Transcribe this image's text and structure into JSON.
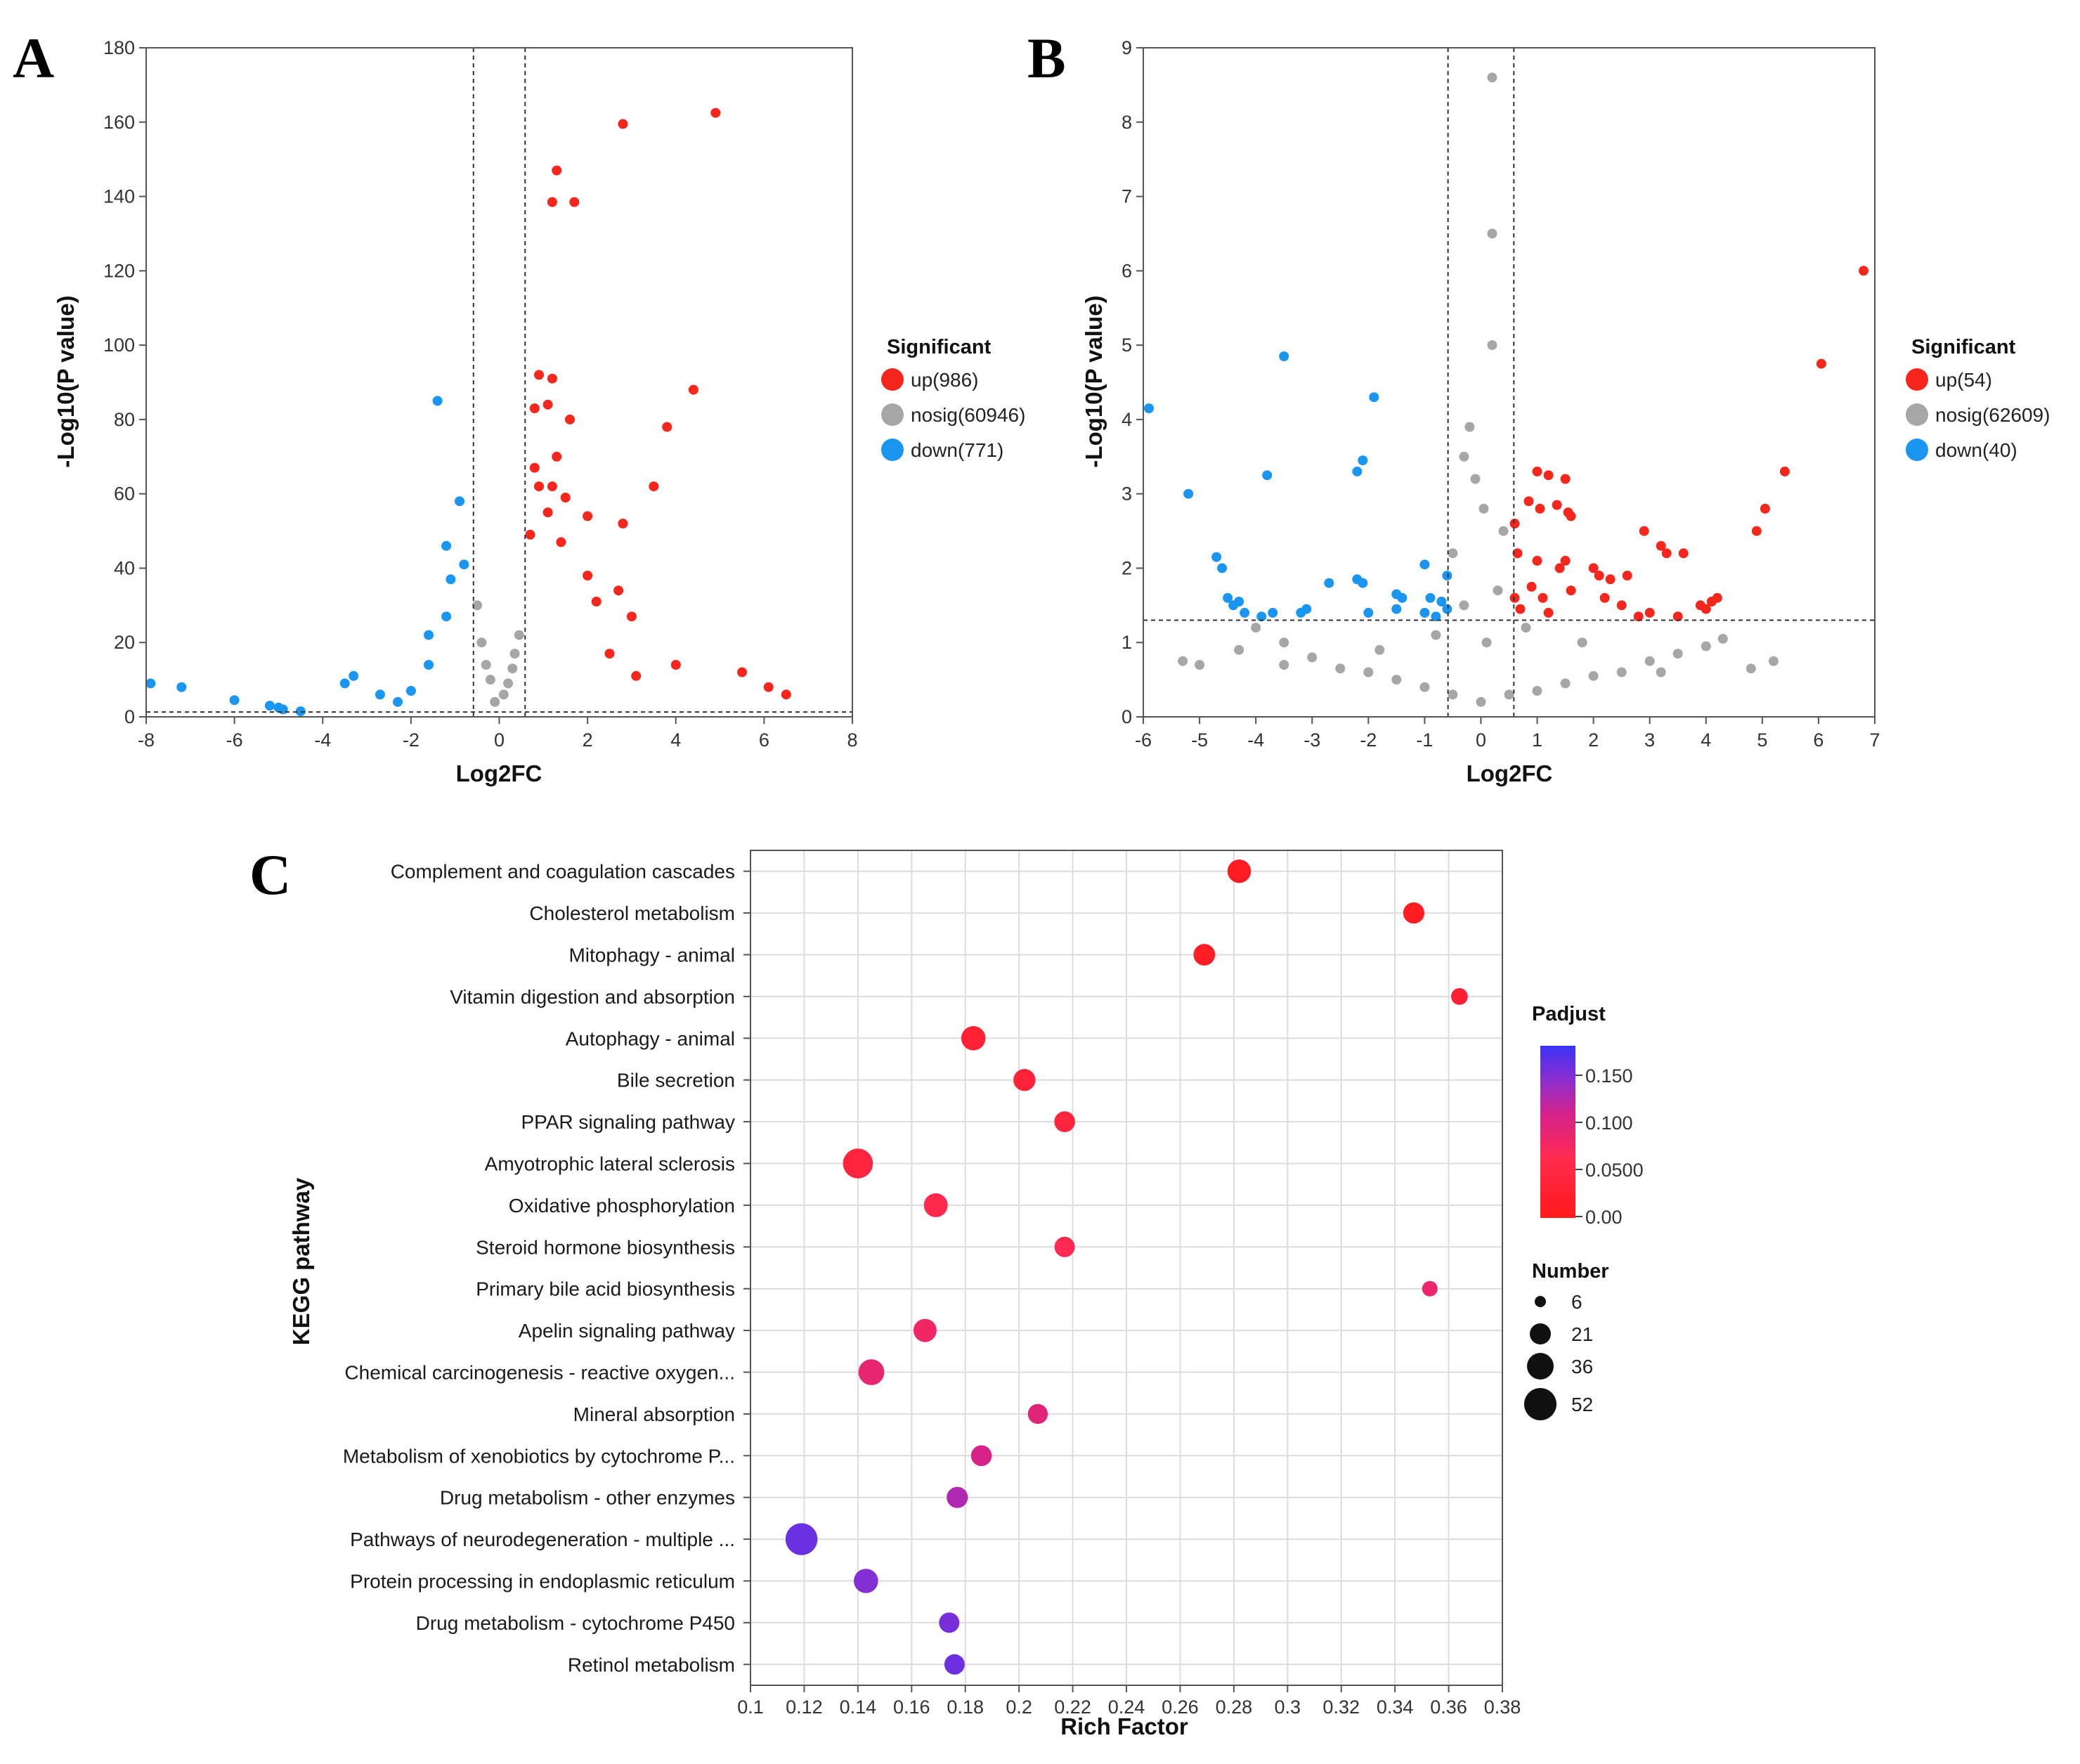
{
  "panels": {
    "a": "A",
    "b": "B",
    "c": "C"
  },
  "colors": {
    "up": "#f5261c",
    "nosig": "#a6a6a6",
    "down": "#1a96f0",
    "grid": "#dcdcdc"
  },
  "chart_data": [
    {
      "id": "A",
      "type": "scatter",
      "subtype": "volcano",
      "xlabel": "Log2FC",
      "ylabel": "-Log10(P value)",
      "xlim": [
        -8,
        8
      ],
      "ylim": [
        0,
        180
      ],
      "x_ticks": [
        "-8",
        "-6",
        "-4",
        "-2",
        "0",
        "2",
        "4",
        "6",
        "8"
      ],
      "y_ticks": [
        "0",
        "20",
        "40",
        "60",
        "80",
        "100",
        "120",
        "140",
        "160",
        "180"
      ],
      "thresholds": {
        "x": [
          -0.585,
          0.585
        ],
        "y": 1.3
      },
      "legend": {
        "title": "Significant",
        "items": [
          {
            "key": "up",
            "label": "up(986)"
          },
          {
            "key": "nosig",
            "label": "nosig(60946)"
          },
          {
            "key": "down",
            "label": "down(771)"
          }
        ]
      },
      "series": [
        {
          "name": "up",
          "points": [
            [
              4.9,
              162.5
            ],
            [
              2.8,
              159.5
            ],
            [
              1.3,
              147
            ],
            [
              1.2,
              138.5
            ],
            [
              1.7,
              138.5
            ],
            [
              4.4,
              88
            ],
            [
              0.9,
              92
            ],
            [
              1.2,
              91
            ],
            [
              0.8,
              83
            ],
            [
              1.1,
              84
            ],
            [
              1.6,
              80
            ],
            [
              3.8,
              78
            ],
            [
              1.3,
              70
            ],
            [
              0.8,
              67
            ],
            [
              1.2,
              62
            ],
            [
              1.5,
              59
            ],
            [
              3.5,
              62
            ],
            [
              0.9,
              62
            ],
            [
              1.1,
              55
            ],
            [
              2.0,
              54
            ],
            [
              2.8,
              52
            ],
            [
              0.7,
              49
            ],
            [
              1.4,
              47
            ],
            [
              4.0,
              14
            ],
            [
              2.5,
              17
            ],
            [
              5.5,
              12
            ],
            [
              3.1,
              11
            ],
            [
              6.1,
              8
            ],
            [
              6.5,
              6
            ],
            [
              2.0,
              38
            ],
            [
              2.7,
              34
            ],
            [
              2.2,
              31
            ],
            [
              3.0,
              27
            ]
          ]
        },
        {
          "name": "nosig",
          "points": [
            [
              -0.4,
              20
            ],
            [
              -0.3,
              14
            ],
            [
              -0.2,
              10
            ],
            [
              0.2,
              9
            ],
            [
              0.3,
              13
            ],
            [
              0.45,
              22
            ],
            [
              -0.5,
              30
            ],
            [
              0.1,
              6
            ],
            [
              -0.1,
              4
            ],
            [
              0.35,
              17
            ]
          ]
        },
        {
          "name": "down",
          "points": [
            [
              -1.4,
              85
            ],
            [
              -0.9,
              58
            ],
            [
              -1.2,
              46
            ],
            [
              -0.8,
              41
            ],
            [
              -1.1,
              37
            ],
            [
              -7.9,
              9
            ],
            [
              -7.2,
              8
            ],
            [
              -6.0,
              4.5
            ],
            [
              -5.2,
              3
            ],
            [
              -3.3,
              11
            ],
            [
              -3.5,
              9
            ],
            [
              -2.7,
              6
            ],
            [
              -2.3,
              4
            ],
            [
              -4.5,
              1.5
            ],
            [
              -4.9,
              2
            ],
            [
              -5.0,
              2.5
            ],
            [
              -2.0,
              7
            ],
            [
              -1.6,
              14
            ],
            [
              -1.6,
              22
            ],
            [
              -1.2,
              27
            ]
          ]
        }
      ]
    },
    {
      "id": "B",
      "type": "scatter",
      "subtype": "volcano",
      "xlabel": "Log2FC",
      "ylabel": "-Log10(P value)",
      "xlim": [
        -6,
        7
      ],
      "ylim": [
        0,
        9
      ],
      "x_ticks": [
        "-6",
        "-5",
        "-4",
        "-3",
        "-2",
        "-1",
        "0",
        "1",
        "2",
        "3",
        "4",
        "5",
        "6",
        "7"
      ],
      "y_ticks": [
        "0",
        "1",
        "2",
        "3",
        "4",
        "5",
        "6",
        "7",
        "8",
        "9"
      ],
      "thresholds": {
        "x": [
          -0.585,
          0.585
        ],
        "y": 1.3
      },
      "legend": {
        "title": "Significant",
        "items": [
          {
            "key": "up",
            "label": "up(54)"
          },
          {
            "key": "nosig",
            "label": "nosig(62609)"
          },
          {
            "key": "down",
            "label": "down(40)"
          }
        ]
      },
      "series": [
        {
          "name": "up",
          "points": [
            [
              6.8,
              6.0
            ],
            [
              6.05,
              4.75
            ],
            [
              5.4,
              3.3
            ],
            [
              5.05,
              2.8
            ],
            [
              4.9,
              2.5
            ],
            [
              1.0,
              3.3
            ],
            [
              1.2,
              3.25
            ],
            [
              1.5,
              3.2
            ],
            [
              0.85,
              2.9
            ],
            [
              1.05,
              2.8
            ],
            [
              1.35,
              2.85
            ],
            [
              1.55,
              2.75
            ],
            [
              1.6,
              2.7
            ],
            [
              2.9,
              2.5
            ],
            [
              3.2,
              2.3
            ],
            [
              3.3,
              2.2
            ],
            [
              3.6,
              2.2
            ],
            [
              0.6,
              2.6
            ],
            [
              0.65,
              2.2
            ],
            [
              1.0,
              2.1
            ],
            [
              1.4,
              2.0
            ],
            [
              1.5,
              2.1
            ],
            [
              2.0,
              2.0
            ],
            [
              2.1,
              1.9
            ],
            [
              2.3,
              1.85
            ],
            [
              2.6,
              1.9
            ],
            [
              0.9,
              1.75
            ],
            [
              0.6,
              1.6
            ],
            [
              1.1,
              1.6
            ],
            [
              1.6,
              1.7
            ],
            [
              2.2,
              1.6
            ],
            [
              2.5,
              1.5
            ],
            [
              3.0,
              1.4
            ],
            [
              3.9,
              1.5
            ],
            [
              4.1,
              1.55
            ],
            [
              4.2,
              1.6
            ],
            [
              4.0,
              1.45
            ],
            [
              3.5,
              1.35
            ],
            [
              2.8,
              1.35
            ],
            [
              1.2,
              1.4
            ],
            [
              0.7,
              1.45
            ]
          ]
        },
        {
          "name": "nosig",
          "points": [
            [
              0.2,
              8.6
            ],
            [
              0.2,
              6.5
            ],
            [
              0.2,
              5.0
            ],
            [
              -0.2,
              3.9
            ],
            [
              -0.3,
              3.5
            ],
            [
              -0.1,
              3.2
            ],
            [
              0.05,
              2.8
            ],
            [
              -0.5,
              2.2
            ],
            [
              0.4,
              2.5
            ],
            [
              -5.3,
              0.75
            ],
            [
              -5.0,
              0.7
            ],
            [
              -4.3,
              0.9
            ],
            [
              -4.0,
              1.2
            ],
            [
              -3.5,
              1.0
            ],
            [
              -3.0,
              0.8
            ],
            [
              -2.5,
              0.65
            ],
            [
              -2.0,
              0.6
            ],
            [
              -1.5,
              0.5
            ],
            [
              -1.0,
              0.4
            ],
            [
              -0.5,
              0.3
            ],
            [
              0,
              0.2
            ],
            [
              0.5,
              0.3
            ],
            [
              1.0,
              0.35
            ],
            [
              1.5,
              0.45
            ],
            [
              2.0,
              0.55
            ],
            [
              2.5,
              0.6
            ],
            [
              3.0,
              0.75
            ],
            [
              3.5,
              0.85
            ],
            [
              4.0,
              0.95
            ],
            [
              4.3,
              1.05
            ],
            [
              4.8,
              0.65
            ],
            [
              5.2,
              0.75
            ],
            [
              -0.8,
              1.1
            ],
            [
              0.8,
              1.2
            ],
            [
              -1.8,
              0.9
            ],
            [
              1.8,
              1.0
            ],
            [
              -3.5,
              0.7
            ],
            [
              3.2,
              0.6
            ],
            [
              0.3,
              1.7
            ],
            [
              -0.3,
              1.5
            ],
            [
              0.1,
              1.0
            ]
          ]
        },
        {
          "name": "down",
          "points": [
            [
              -5.9,
              4.15
            ],
            [
              -3.5,
              4.85
            ],
            [
              -1.9,
              4.3
            ],
            [
              -5.2,
              3.0
            ],
            [
              -3.8,
              3.25
            ],
            [
              -2.2,
              3.3
            ],
            [
              -2.1,
              3.45
            ],
            [
              -4.7,
              2.15
            ],
            [
              -4.6,
              2.0
            ],
            [
              -4.5,
              1.6
            ],
            [
              -4.4,
              1.5
            ],
            [
              -4.3,
              1.55
            ],
            [
              -4.2,
              1.4
            ],
            [
              -3.9,
              1.35
            ],
            [
              -3.7,
              1.4
            ],
            [
              -3.2,
              1.4
            ],
            [
              -3.1,
              1.45
            ],
            [
              -2.7,
              1.8
            ],
            [
              -2.2,
              1.85
            ],
            [
              -2.1,
              1.8
            ],
            [
              -1.5,
              1.65
            ],
            [
              -1.4,
              1.6
            ],
            [
              -1.0,
              2.05
            ],
            [
              -0.9,
              1.6
            ],
            [
              -0.7,
              1.55
            ],
            [
              -0.6,
              1.45
            ],
            [
              -1.0,
              1.4
            ],
            [
              -0.8,
              1.35
            ],
            [
              -0.6,
              1.9
            ],
            [
              -1.5,
              1.45
            ],
            [
              -2.0,
              1.4
            ]
          ]
        }
      ]
    },
    {
      "id": "C",
      "type": "scatter",
      "subtype": "bubble",
      "xlabel": "Rich Factor",
      "ylabel": "KEGG pathway",
      "xlim": [
        0.1,
        0.38
      ],
      "x_ticks": [
        "0.1",
        "0.12",
        "0.14",
        "0.16",
        "0.18",
        "0.2",
        "0.22",
        "0.24",
        "0.26",
        "0.28",
        "0.3",
        "0.32",
        "0.34",
        "0.36",
        "0.38"
      ],
      "color_legend": {
        "title": "Padjust",
        "ticks": [
          "0.150",
          "0.100",
          "0.0500",
          "0.00"
        ],
        "range": [
          0,
          0.17
        ],
        "low_color": "#ff1a1a",
        "high_color": "#3c32f5"
      },
      "size_legend": {
        "title": "Number",
        "values": [
          6,
          21,
          36,
          52
        ]
      },
      "pathways": [
        {
          "name": "Complement and coagulation cascades",
          "rich_factor": 0.282,
          "number": 23,
          "padjust": 0.01
        },
        {
          "name": "Cholesterol metabolism",
          "rich_factor": 0.347,
          "number": 17,
          "padjust": 0.01
        },
        {
          "name": "Mitophagy - animal",
          "rich_factor": 0.269,
          "number": 18,
          "padjust": 0.015
        },
        {
          "name": "Vitamin digestion and absorption",
          "rich_factor": 0.364,
          "number": 8,
          "padjust": 0.025
        },
        {
          "name": "Autophagy - animal",
          "rich_factor": 0.183,
          "number": 25,
          "padjust": 0.03
        },
        {
          "name": "Bile secretion",
          "rich_factor": 0.202,
          "number": 19,
          "padjust": 0.035
        },
        {
          "name": "PPAR signaling pathway",
          "rich_factor": 0.217,
          "number": 16,
          "padjust": 0.04
        },
        {
          "name": "Amyotrophic lateral sclerosis",
          "rich_factor": 0.14,
          "number": 44,
          "padjust": 0.04
        },
        {
          "name": "Oxidative phosphorylation",
          "rich_factor": 0.169,
          "number": 24,
          "padjust": 0.055
        },
        {
          "name": "Steroid hormone biosynthesis",
          "rich_factor": 0.217,
          "number": 15,
          "padjust": 0.06
        },
        {
          "name": "Primary bile acid biosynthesis",
          "rich_factor": 0.353,
          "number": 6,
          "padjust": 0.08
        },
        {
          "name": "Apelin signaling pathway",
          "rich_factor": 0.165,
          "number": 22,
          "padjust": 0.075
        },
        {
          "name": "Chemical carcinogenesis - reactive oxygen...",
          "rich_factor": 0.145,
          "number": 30,
          "padjust": 0.085
        },
        {
          "name": "Mineral absorption",
          "rich_factor": 0.207,
          "number": 14,
          "padjust": 0.09
        },
        {
          "name": "Metabolism of xenobiotics by cytochrome P...",
          "rich_factor": 0.186,
          "number": 16,
          "padjust": 0.1
        },
        {
          "name": "Drug metabolism - other enzymes",
          "rich_factor": 0.177,
          "number": 17,
          "padjust": 0.12
        },
        {
          "name": "Pathways of neurodegeneration - multiple ...",
          "rich_factor": 0.119,
          "number": 52,
          "padjust": 0.15
        },
        {
          "name": "Protein processing in endoplasmic reticulum",
          "rich_factor": 0.143,
          "number": 25,
          "padjust": 0.14
        },
        {
          "name": "Drug metabolism - cytochrome P450",
          "rich_factor": 0.174,
          "number": 15,
          "padjust": 0.145
        },
        {
          "name": "Retinol metabolism",
          "rich_factor": 0.176,
          "number": 15,
          "padjust": 0.15
        }
      ]
    }
  ]
}
